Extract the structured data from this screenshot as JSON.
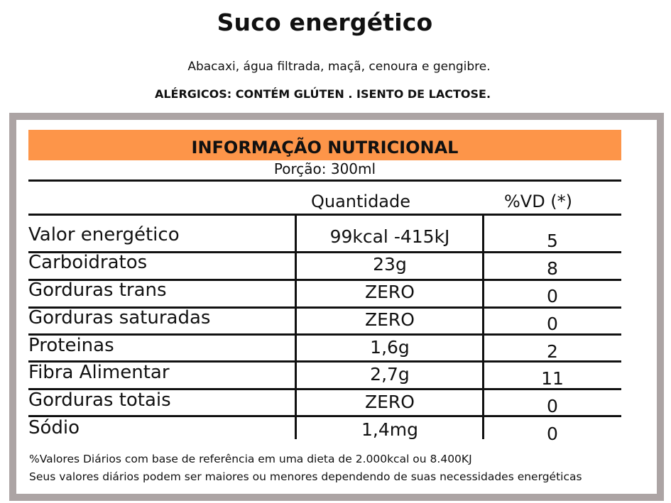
{
  "product": {
    "title": "Suco energético",
    "ingredients": "Abacaxi, água filtrada, maçã, cenoura e gengibre.",
    "allergens": "ALÉRGICOS: CONTÉM GLÚTEN . ISENTO DE LACTOSE."
  },
  "table": {
    "heading": "INFORMAÇÃO NUTRICIONAL",
    "portion": "Porção: 300ml",
    "col_quantity": "Quantidade",
    "col_vd": "%VD (*)",
    "rows": [
      {
        "name": "Valor energético",
        "quantity": "99kcal -415kJ",
        "vd": "5"
      },
      {
        "name": "Carboidratos",
        "quantity": "23g",
        "vd": "8"
      },
      {
        "name": "Gorduras trans",
        "quantity": "ZERO",
        "vd": "0"
      },
      {
        "name": "Gorduras saturadas",
        "quantity": "ZERO",
        "vd": "0"
      },
      {
        "name": "Proteinas",
        "quantity": "1,6g",
        "vd": "2"
      },
      {
        "name": "Fibra Alimentar",
        "quantity": "2,7g",
        "vd": "11"
      },
      {
        "name": "Gorduras totais",
        "quantity": "ZERO",
        "vd": "0"
      },
      {
        "name": "Sódio",
        "quantity": "1,4mg",
        "vd": "0"
      }
    ]
  },
  "footnotes": {
    "line1": "%Valores Diários com base de referência em uma dieta de 2.000kcal ou 8.400KJ",
    "line2": "Seus valores diários podem ser maiores ou menores dependendo de suas necessidades energéticas"
  },
  "colors": {
    "header_bar": "#fd9549",
    "frame_border": "#aca4a4",
    "text": "#111111"
  }
}
